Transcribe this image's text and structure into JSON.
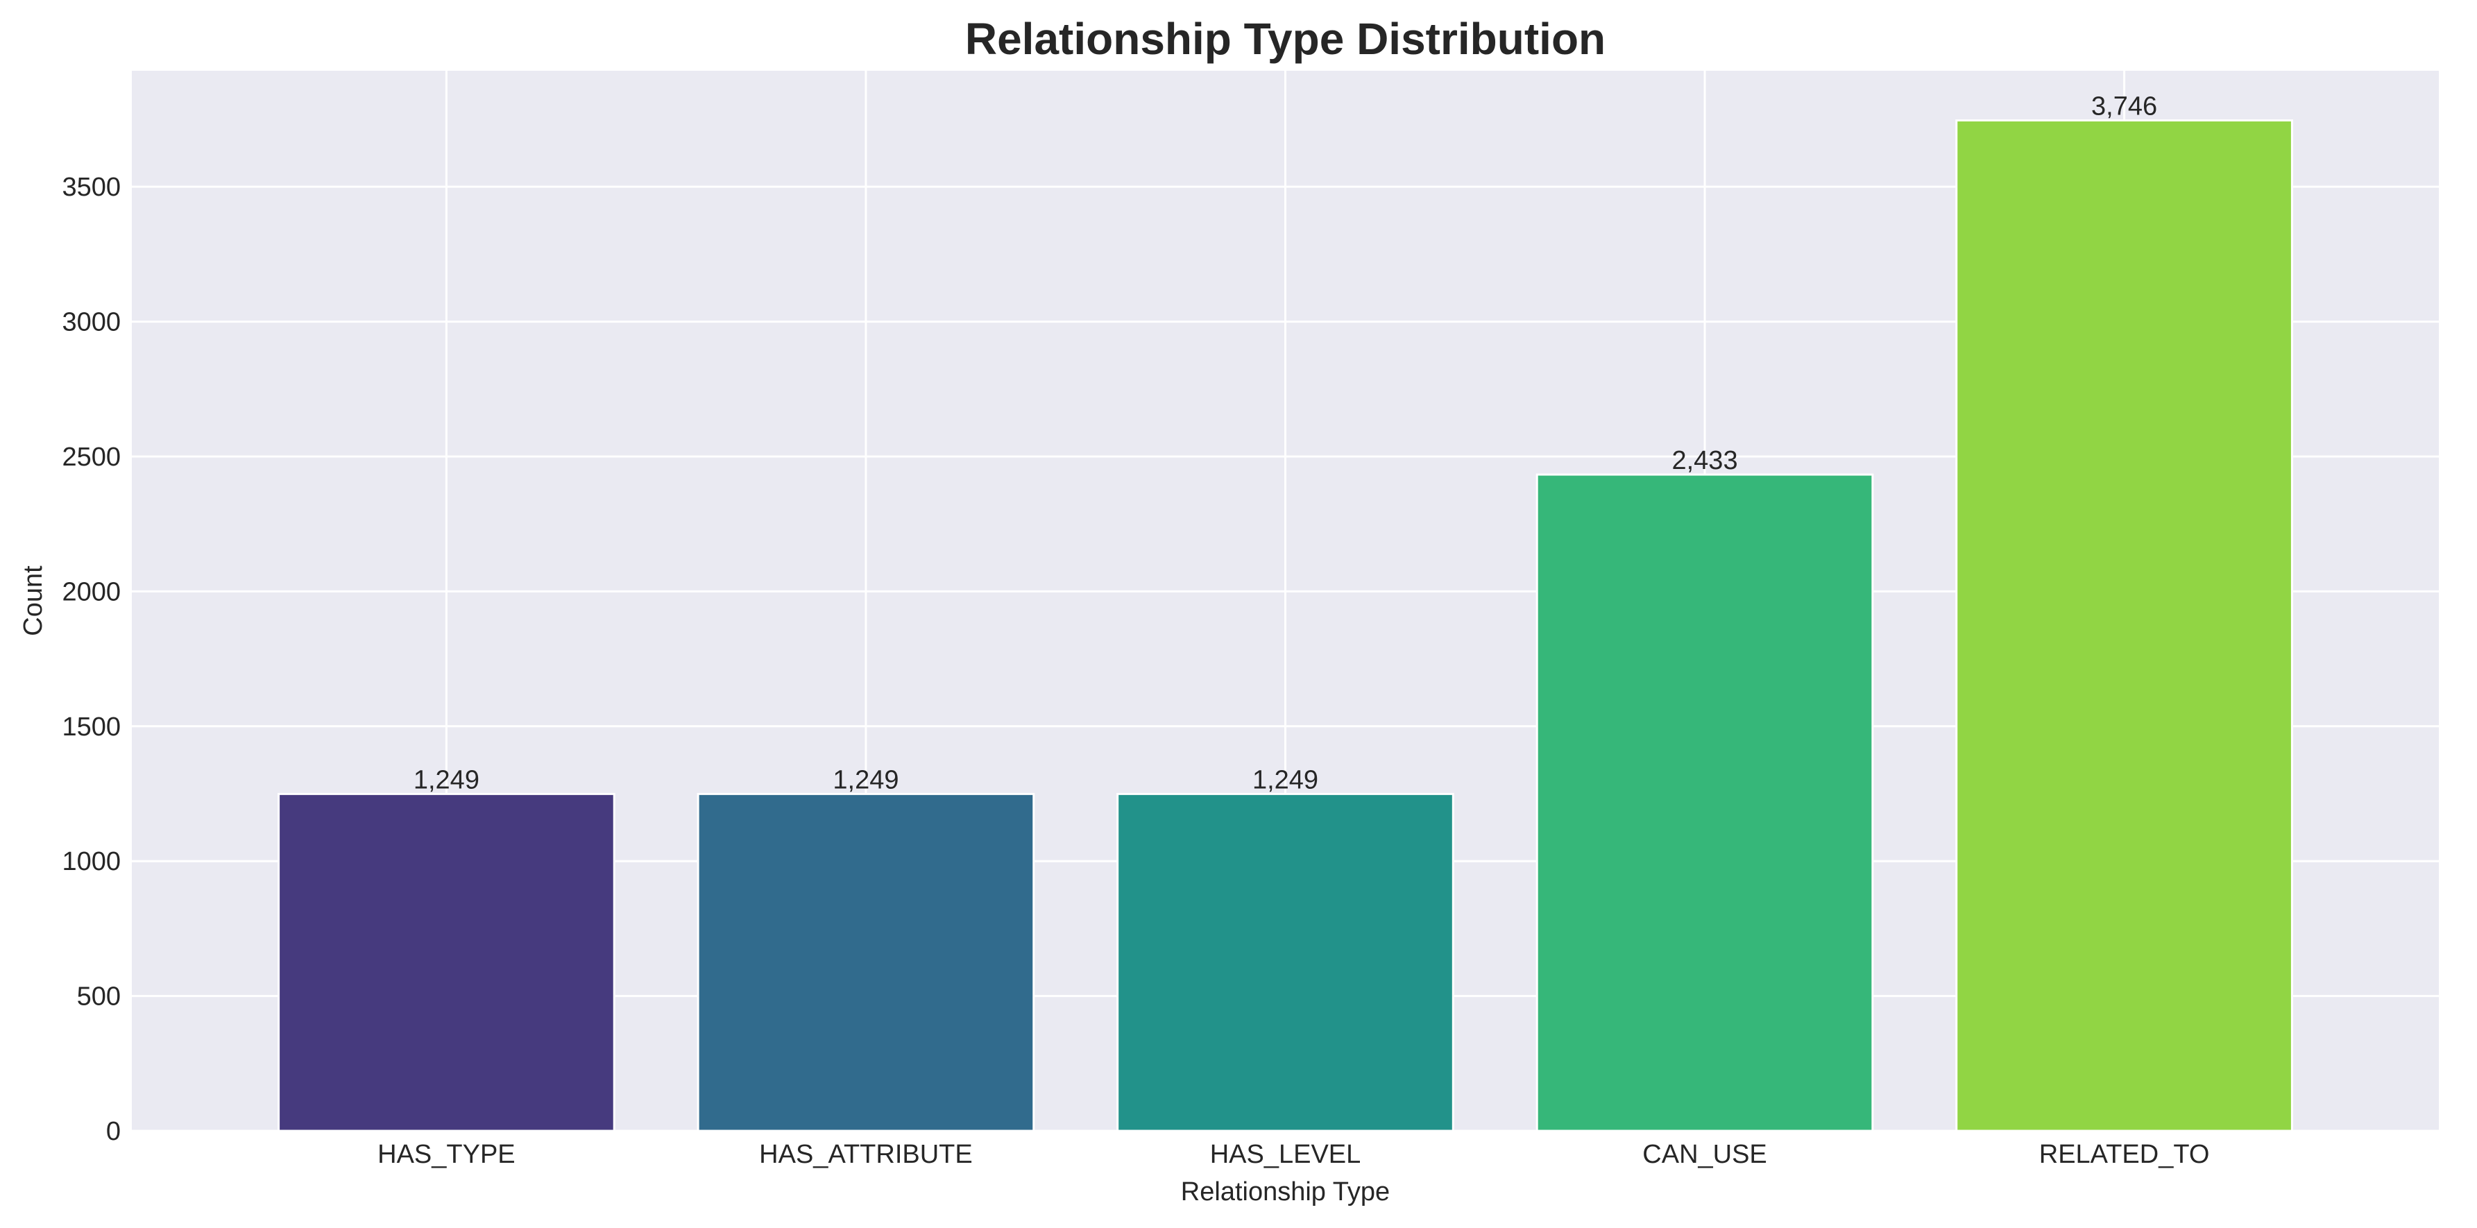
{
  "chart_data": {
    "type": "bar",
    "title": "Relationship Type Distribution",
    "xlabel": "Relationship Type",
    "ylabel": "Count",
    "categories": [
      "HAS_TYPE",
      "HAS_ATTRIBUTE",
      "HAS_LEVEL",
      "CAN_USE",
      "RELATED_TO"
    ],
    "values": [
      1249,
      1249,
      1249,
      2433,
      3746
    ],
    "data_labels": [
      "1,249",
      "1,249",
      "1,249",
      "2,433",
      "3,746"
    ],
    "bar_colors": [
      "#463a7e",
      "#316b8d",
      "#22928a",
      "#36b779",
      "#91d544"
    ],
    "ylim": [
      0,
      3930
    ],
    "yticks": [
      0,
      500,
      1000,
      1500,
      2000,
      2500,
      3000,
      3500
    ],
    "grid": true,
    "background_color": "#eaeaf2",
    "grid_color": "#ffffff"
  }
}
